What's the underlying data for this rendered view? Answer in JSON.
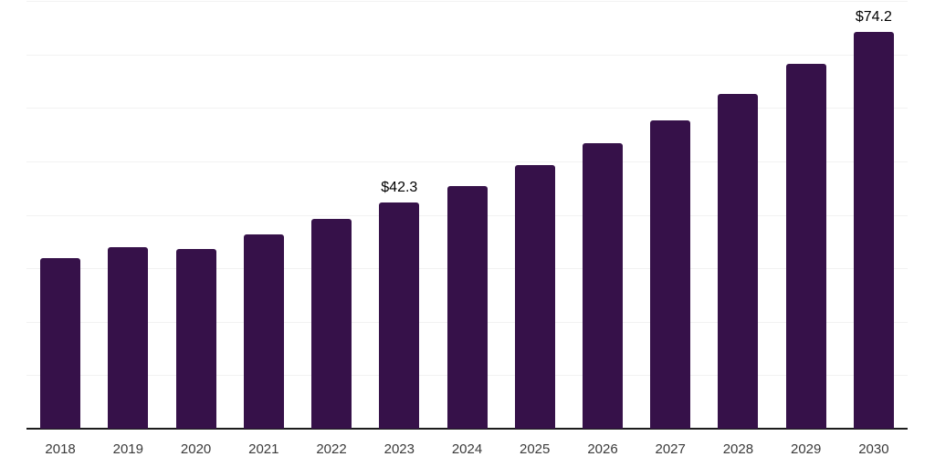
{
  "chart_data": {
    "type": "bar",
    "categories": [
      "2018",
      "2019",
      "2020",
      "2021",
      "2022",
      "2023",
      "2024",
      "2025",
      "2026",
      "2027",
      "2028",
      "2029",
      "2030"
    ],
    "values": [
      31.9,
      34.0,
      33.7,
      36.4,
      39.3,
      42.3,
      45.4,
      49.3,
      53.4,
      57.7,
      62.6,
      68.3,
      74.2
    ],
    "value_labels": {
      "2023": "$42.3",
      "2030": "$74.2"
    },
    "xlabel": "",
    "ylabel": "",
    "ylim": [
      0,
      80
    ],
    "gridline_step": 10,
    "grid": "horizontal-only",
    "legend": "none",
    "y_axis_labels_visible": false,
    "colors": {
      "bar": "#361149",
      "gridline": "#f2f2f2",
      "axis_line": "#1c1c1c",
      "tick_label": "#3a3a3a",
      "value_label": "#000000",
      "background": "#ffffff"
    }
  }
}
